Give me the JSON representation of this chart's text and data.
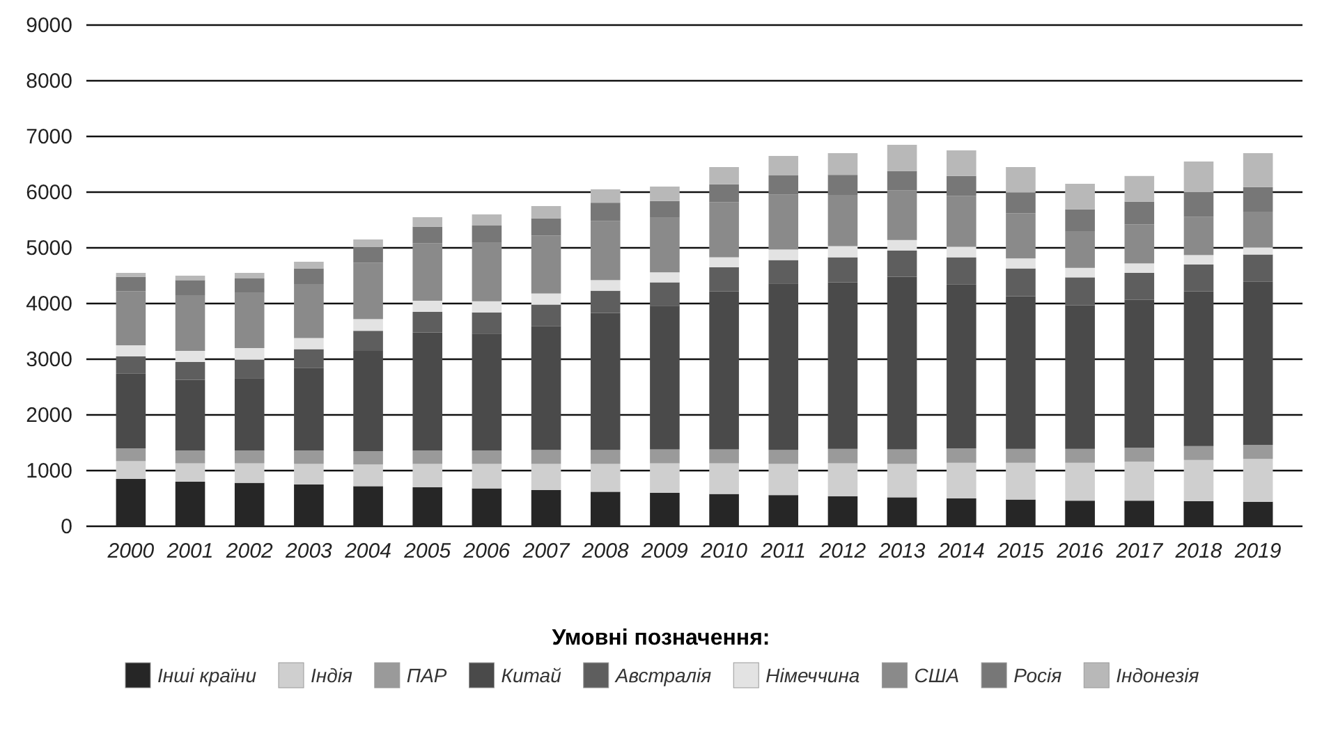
{
  "chart_data": {
    "type": "bar",
    "stacked": true,
    "categories": [
      "2000",
      "2001",
      "2002",
      "2003",
      "2004",
      "2005",
      "2006",
      "2007",
      "2008",
      "2009",
      "2010",
      "2011",
      "2012",
      "2013",
      "2014",
      "2015",
      "2016",
      "2017",
      "2018",
      "2019"
    ],
    "ylim": [
      0,
      9000
    ],
    "yticks": [
      0,
      1000,
      2000,
      3000,
      4000,
      5000,
      6000,
      7000,
      8000,
      9000
    ],
    "grid": "y",
    "legend": "bottom",
    "legend_title": "Умовні позначення:",
    "series": [
      {
        "name": "Інші країни",
        "color": "#262626",
        "values": [
          850,
          800,
          780,
          750,
          720,
          700,
          680,
          650,
          620,
          600,
          580,
          560,
          540,
          520,
          500,
          480,
          460,
          460,
          450,
          440
        ]
      },
      {
        "name": "Індія",
        "color": "#cfcfcf",
        "values": [
          320,
          330,
          350,
          370,
          390,
          420,
          440,
          470,
          500,
          530,
          550,
          560,
          590,
          600,
          640,
          660,
          680,
          700,
          740,
          770
        ]
      },
      {
        "name": "ПАР",
        "color": "#9a9a9a",
        "values": [
          230,
          230,
          230,
          240,
          240,
          240,
          240,
          250,
          250,
          250,
          250,
          250,
          260,
          260,
          260,
          250,
          250,
          250,
          250,
          250
        ]
      },
      {
        "name": "Китай",
        "color": "#4a4a4a",
        "values": [
          1340,
          1270,
          1300,
          1480,
          1800,
          2120,
          2100,
          2220,
          2460,
          2580,
          2840,
          2990,
          2990,
          3100,
          2940,
          2740,
          2580,
          2660,
          2780,
          2930
        ]
      },
      {
        "name": "Австралія",
        "color": "#5e5e5e",
        "values": [
          310,
          320,
          330,
          340,
          360,
          370,
          380,
          390,
          400,
          420,
          430,
          420,
          450,
          470,
          490,
          500,
          500,
          480,
          480,
          490
        ]
      },
      {
        "name": "Німеччина",
        "color": "#e3e3e3",
        "values": [
          200,
          200,
          210,
          200,
          210,
          200,
          200,
          200,
          190,
          180,
          180,
          190,
          200,
          190,
          190,
          180,
          170,
          170,
          170,
          130
        ]
      },
      {
        "name": "США",
        "color": "#8a8a8a",
        "values": [
          970,
          1000,
          990,
          970,
          1010,
          1030,
          1050,
          1040,
          1060,
          980,
          990,
          990,
          920,
          890,
          910,
          810,
          660,
          700,
          690,
          640
        ]
      },
      {
        "name": "Росія",
        "color": "#777777",
        "values": [
          260,
          270,
          260,
          280,
          280,
          300,
          310,
          310,
          330,
          300,
          320,
          340,
          360,
          350,
          360,
          370,
          390,
          410,
          440,
          440
        ]
      },
      {
        "name": "Індонезія",
        "color": "#b8b8b8",
        "values": [
          70,
          80,
          100,
          120,
          140,
          170,
          200,
          220,
          240,
          260,
          310,
          350,
          390,
          470,
          460,
          460,
          460,
          460,
          550,
          610
        ]
      }
    ]
  }
}
